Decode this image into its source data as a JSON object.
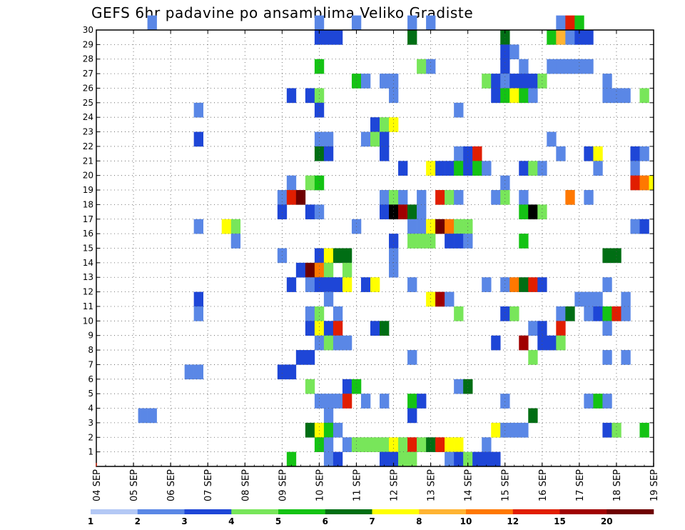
{
  "title": "GEFS 6hr padavine po ansamblima Veliko Gradiste",
  "chart_data": {
    "type": "heatmap",
    "title": "GEFS 6hr padavine po ansamblima Veliko Gradiste",
    "ylabels": [
      "1",
      "2",
      "3",
      "4",
      "5",
      "6",
      "7",
      "8",
      "9",
      "10",
      "11",
      "12",
      "13",
      "14",
      "15",
      "16",
      "17",
      "18",
      "19",
      "20",
      "21",
      "22",
      "23",
      "24",
      "25",
      "26",
      "27",
      "28",
      "29",
      "30"
    ],
    "xlabels": [
      "04 SEP",
      "05 SEP",
      "06 SEP",
      "07 SEP",
      "08 SEP",
      "09 SEP",
      "10 SEP",
      "11 SEP",
      "12 SEP",
      "13 SEP",
      "14 SEP",
      "15 SEP",
      "16 SEP",
      "17 SEP",
      "18 SEP",
      "19 SEP"
    ],
    "grid": true,
    "colorbar": {
      "labels": [
        "1",
        "2",
        "3",
        "4",
        "5",
        "6",
        "7",
        "8",
        "10",
        "12",
        "15",
        "20"
      ],
      "colors": [
        "#b4c8f5",
        "#5a87e6",
        "#1e46d7",
        "#78e65a",
        "#14c314",
        "#006e14",
        "#ffff00",
        "#ffb432",
        "#ff7800",
        "#e11e00",
        "#a00000",
        "#6e0000"
      ]
    },
    "cells": [
      [
        30,
        5.5,
        1
      ],
      [
        30,
        10,
        1
      ],
      [
        30,
        11,
        1
      ],
      [
        30,
        12.5,
        1
      ],
      [
        30,
        13,
        1
      ],
      [
        30,
        16.5,
        1
      ],
      [
        30,
        16.75,
        9
      ],
      [
        30,
        17,
        4
      ],
      [
        29,
        10,
        2
      ],
      [
        29,
        10.25,
        2
      ],
      [
        29,
        10.5,
        2
      ],
      [
        29,
        12.5,
        5
      ],
      [
        29,
        15,
        5
      ],
      [
        29,
        16.25,
        4
      ],
      [
        29,
        16.5,
        7
      ],
      [
        29,
        16.75,
        1
      ],
      [
        29,
        17,
        2
      ],
      [
        29,
        17.25,
        2
      ],
      [
        28,
        15,
        2
      ],
      [
        28,
        15.25,
        1
      ],
      [
        27,
        10,
        4
      ],
      [
        27,
        12.75,
        3
      ],
      [
        27,
        13,
        1
      ],
      [
        27,
        15,
        2
      ],
      [
        27,
        15.5,
        1
      ],
      [
        27,
        16.25,
        1
      ],
      [
        27,
        16.5,
        1
      ],
      [
        27,
        16.75,
        1
      ],
      [
        27,
        17,
        1
      ],
      [
        27,
        17.25,
        1
      ],
      [
        26,
        11,
        4
      ],
      [
        26,
        11.25,
        1
      ],
      [
        26,
        11.75,
        1
      ],
      [
        26,
        12,
        1
      ],
      [
        26,
        14.5,
        3
      ],
      [
        26,
        14.75,
        2
      ],
      [
        26,
        15,
        1
      ],
      [
        26,
        15.25,
        2
      ],
      [
        26,
        15.5,
        2
      ],
      [
        26,
        15.75,
        2
      ],
      [
        26,
        16,
        3
      ],
      [
        26,
        17.75,
        1
      ],
      [
        25,
        9.25,
        2
      ],
      [
        25,
        9.75,
        2
      ],
      [
        25,
        10,
        3
      ],
      [
        25,
        12,
        1
      ],
      [
        25,
        14.75,
        2
      ],
      [
        25,
        15,
        4
      ],
      [
        25,
        15.25,
        6
      ],
      [
        25,
        15.5,
        4
      ],
      [
        25,
        15.75,
        1
      ],
      [
        25,
        17.75,
        1
      ],
      [
        25,
        18,
        1
      ],
      [
        25,
        18.25,
        1
      ],
      [
        25,
        18.75,
        3
      ],
      [
        24,
        6.75,
        1
      ],
      [
        24,
        10,
        2
      ],
      [
        24,
        13.75,
        1
      ],
      [
        23,
        11.5,
        2
      ],
      [
        23,
        11.75,
        3
      ],
      [
        23,
        12,
        6
      ],
      [
        22,
        6.75,
        2
      ],
      [
        22,
        10,
        1
      ],
      [
        22,
        10.25,
        1
      ],
      [
        22,
        11.25,
        1
      ],
      [
        22,
        11.5,
        3
      ],
      [
        22,
        11.75,
        2
      ],
      [
        22,
        16.25,
        1
      ],
      [
        21,
        10,
        5
      ],
      [
        21,
        10.25,
        2
      ],
      [
        21,
        11.75,
        2
      ],
      [
        21,
        13.75,
        1
      ],
      [
        21,
        14,
        2
      ],
      [
        21,
        14.25,
        9
      ],
      [
        21,
        16.5,
        1
      ],
      [
        21,
        17.25,
        2
      ],
      [
        21,
        17.5,
        6
      ],
      [
        21,
        18.5,
        2
      ],
      [
        21,
        18.75,
        1
      ],
      [
        20,
        12.25,
        2
      ],
      [
        20,
        13,
        6
      ],
      [
        20,
        13.25,
        2
      ],
      [
        20,
        13.5,
        2
      ],
      [
        20,
        13.75,
        4
      ],
      [
        20,
        14,
        2
      ],
      [
        20,
        14.25,
        4
      ],
      [
        20,
        14.5,
        1
      ],
      [
        20,
        15.5,
        2
      ],
      [
        20,
        15.75,
        3
      ],
      [
        20,
        16,
        1
      ],
      [
        20,
        17.5,
        1
      ],
      [
        20,
        18.5,
        1
      ],
      [
        19,
        9.25,
        1
      ],
      [
        19,
        9.75,
        3
      ],
      [
        19,
        10,
        4
      ],
      [
        19,
        15,
        1
      ],
      [
        19,
        18.5,
        9
      ],
      [
        19,
        18.75,
        8
      ],
      [
        19,
        19,
        6
      ],
      [
        18,
        9,
        1
      ],
      [
        18,
        9.25,
        9
      ],
      [
        18,
        9.5,
        11
      ],
      [
        18,
        11.75,
        1
      ],
      [
        18,
        12,
        3
      ],
      [
        18,
        12.25,
        1
      ],
      [
        18,
        12.75,
        1
      ],
      [
        18,
        13.25,
        9
      ],
      [
        18,
        13.5,
        3
      ],
      [
        18,
        13.75,
        1
      ],
      [
        18,
        14.75,
        1
      ],
      [
        18,
        15,
        3
      ],
      [
        18,
        15.5,
        1
      ],
      [
        18,
        16.75,
        8
      ],
      [
        18,
        17.25,
        1
      ],
      [
        17,
        9,
        2
      ],
      [
        17,
        9.75,
        2
      ],
      [
        17,
        10,
        1
      ],
      [
        17,
        11.75,
        2
      ],
      [
        17,
        12,
        13
      ],
      [
        17,
        12.25,
        10
      ],
      [
        17,
        12.5,
        5
      ],
      [
        17,
        12.75,
        1
      ],
      [
        17,
        15.5,
        4
      ],
      [
        17,
        15.75,
        13
      ],
      [
        17,
        16,
        3
      ],
      [
        16,
        6.75,
        1
      ],
      [
        16,
        7.5,
        6
      ],
      [
        16,
        7.75,
        3
      ],
      [
        16,
        11,
        1
      ],
      [
        16,
        12.5,
        1
      ],
      [
        16,
        12.75,
        1
      ],
      [
        16,
        13,
        6
      ],
      [
        16,
        13.25,
        11
      ],
      [
        16,
        13.5,
        8
      ],
      [
        16,
        13.75,
        3
      ],
      [
        16,
        14,
        3
      ],
      [
        16,
        18.5,
        1
      ],
      [
        16,
        18.75,
        2
      ],
      [
        15,
        7.75,
        1
      ],
      [
        15,
        12,
        2
      ],
      [
        15,
        12.5,
        3
      ],
      [
        15,
        12.75,
        3
      ],
      [
        15,
        13,
        3
      ],
      [
        15,
        13.5,
        2
      ],
      [
        15,
        13.75,
        2
      ],
      [
        15,
        14,
        1
      ],
      [
        15,
        15.5,
        4
      ],
      [
        14,
        9,
        1
      ],
      [
        14,
        10,
        2
      ],
      [
        14,
        10.25,
        6
      ],
      [
        14,
        10.5,
        5
      ],
      [
        14,
        10.75,
        5
      ],
      [
        14,
        12,
        1
      ],
      [
        14,
        17.75,
        5
      ],
      [
        14,
        18,
        5
      ],
      [
        13,
        9.5,
        2
      ],
      [
        13,
        9.75,
        11
      ],
      [
        13,
        10,
        8
      ],
      [
        13,
        10.25,
        3
      ],
      [
        13,
        10.75,
        3
      ],
      [
        13,
        12,
        1
      ],
      [
        12,
        9.25,
        2
      ],
      [
        12,
        9.75,
        1
      ],
      [
        12,
        10,
        2
      ],
      [
        12,
        10.25,
        2
      ],
      [
        12,
        10.5,
        2
      ],
      [
        12,
        10.75,
        6
      ],
      [
        12,
        11.25,
        2
      ],
      [
        12,
        11.5,
        6
      ],
      [
        12,
        12.5,
        1
      ],
      [
        12,
        14.5,
        1
      ],
      [
        12,
        15,
        1
      ],
      [
        12,
        15.25,
        8
      ],
      [
        12,
        15.5,
        5
      ],
      [
        12,
        15.75,
        9
      ],
      [
        12,
        16,
        2
      ],
      [
        12,
        17.75,
        1
      ],
      [
        11,
        6.75,
        2
      ],
      [
        11,
        10.25,
        1
      ],
      [
        11,
        13,
        6
      ],
      [
        11,
        13.25,
        10
      ],
      [
        11,
        13.5,
        1
      ],
      [
        11,
        17,
        1
      ],
      [
        11,
        17.25,
        1
      ],
      [
        11,
        17.5,
        1
      ],
      [
        11,
        18.25,
        1
      ],
      [
        10,
        6.75,
        1
      ],
      [
        10,
        9.75,
        1
      ],
      [
        10,
        10,
        3
      ],
      [
        10,
        10.5,
        1
      ],
      [
        10,
        13.75,
        3
      ],
      [
        10,
        15,
        2
      ],
      [
        10,
        15.25,
        3
      ],
      [
        10,
        16.5,
        1
      ],
      [
        10,
        16.75,
        5
      ],
      [
        10,
        17.25,
        1
      ],
      [
        10,
        17.5,
        2
      ],
      [
        10,
        17.75,
        4
      ],
      [
        10,
        18,
        9
      ],
      [
        10,
        18.25,
        1
      ],
      [
        9,
        9.75,
        2
      ],
      [
        9,
        10,
        6
      ],
      [
        9,
        10.25,
        2
      ],
      [
        9,
        10.5,
        9
      ],
      [
        9,
        11.5,
        2
      ],
      [
        9,
        11.75,
        5
      ],
      [
        9,
        15.75,
        1
      ],
      [
        9,
        16,
        2
      ],
      [
        9,
        16.5,
        9
      ],
      [
        9,
        17.75,
        1
      ],
      [
        8,
        10,
        1
      ],
      [
        8,
        10.25,
        3
      ],
      [
        8,
        10.5,
        1
      ],
      [
        8,
        10.75,
        1
      ],
      [
        8,
        14.75,
        2
      ],
      [
        8,
        15.5,
        10
      ],
      [
        8,
        16,
        2
      ],
      [
        8,
        16.25,
        2
      ],
      [
        8,
        16.5,
        3
      ],
      [
        7,
        9.5,
        2
      ],
      [
        7,
        9.75,
        2
      ],
      [
        7,
        12.5,
        1
      ],
      [
        7,
        15.75,
        3
      ],
      [
        7,
        17.75,
        1
      ],
      [
        7,
        18.25,
        1
      ],
      [
        6,
        6.5,
        1
      ],
      [
        6,
        6.75,
        1
      ],
      [
        6,
        9,
        2
      ],
      [
        6,
        9.25,
        2
      ],
      [
        5,
        9.75,
        3
      ],
      [
        5,
        10.75,
        2
      ],
      [
        5,
        11,
        4
      ],
      [
        5,
        13.75,
        1
      ],
      [
        5,
        14,
        5
      ],
      [
        4,
        10,
        1
      ],
      [
        4,
        10.25,
        1
      ],
      [
        4,
        10.5,
        1
      ],
      [
        4,
        10.75,
        9
      ],
      [
        4,
        11.25,
        1
      ],
      [
        4,
        11.75,
        1
      ],
      [
        4,
        12.5,
        4
      ],
      [
        4,
        12.75,
        2
      ],
      [
        4,
        15,
        1
      ],
      [
        4,
        17.25,
        1
      ],
      [
        4,
        17.5,
        4
      ],
      [
        4,
        17.75,
        1
      ],
      [
        3,
        5.25,
        1
      ],
      [
        3,
        5.5,
        1
      ],
      [
        3,
        10.25,
        1
      ],
      [
        3,
        12.5,
        2
      ],
      [
        3,
        15.75,
        5
      ],
      [
        2,
        9.75,
        5
      ],
      [
        2,
        10,
        6
      ],
      [
        2,
        10.25,
        4
      ],
      [
        2,
        10.5,
        1
      ],
      [
        2,
        14.75,
        6
      ],
      [
        2,
        15,
        1
      ],
      [
        2,
        15.25,
        1
      ],
      [
        2,
        15.5,
        1
      ],
      [
        2,
        17.75,
        2
      ],
      [
        2,
        18,
        3
      ],
      [
        2,
        18.75,
        4
      ],
      [
        1,
        10,
        4
      ],
      [
        1,
        10.25,
        1
      ],
      [
        1,
        10.75,
        1
      ],
      [
        1,
        11,
        3
      ],
      [
        1,
        11.25,
        3
      ],
      [
        1,
        11.5,
        3
      ],
      [
        1,
        11.75,
        3
      ],
      [
        1,
        12,
        6
      ],
      [
        1,
        12.25,
        3
      ],
      [
        1,
        12.5,
        9
      ],
      [
        1,
        12.75,
        3
      ],
      [
        1,
        13,
        5
      ],
      [
        1,
        13.25,
        9
      ],
      [
        1,
        13.5,
        6
      ],
      [
        1,
        13.75,
        6
      ],
      [
        1,
        14.5,
        1
      ],
      [
        0,
        9.25,
        4
      ],
      [
        0,
        10.25,
        1
      ],
      [
        0,
        10.5,
        2
      ],
      [
        0,
        11.75,
        2
      ],
      [
        0,
        12,
        2
      ],
      [
        0,
        12.25,
        3
      ],
      [
        0,
        12.5,
        3
      ],
      [
        0,
        13.5,
        1
      ],
      [
        0,
        13.75,
        2
      ],
      [
        0,
        14,
        3
      ],
      [
        0,
        14.25,
        2
      ],
      [
        0,
        14.5,
        2
      ],
      [
        0,
        14.75,
        2
      ]
    ]
  }
}
